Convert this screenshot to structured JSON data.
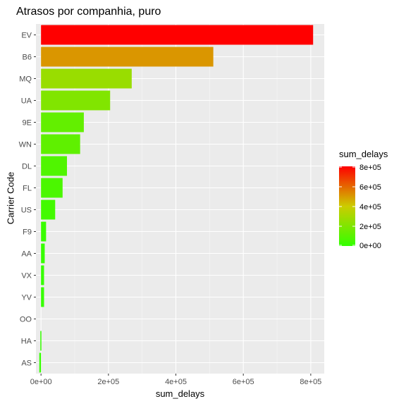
{
  "chart_data": {
    "type": "bar",
    "orientation": "horizontal",
    "title": "Atrasos por companhia, puro",
    "xlabel": "sum_delays",
    "ylabel": "Carrier Code",
    "categories": [
      "EV",
      "B6",
      "MQ",
      "UA",
      "9E",
      "WN",
      "DL",
      "FL",
      "US",
      "F9",
      "AA",
      "VX",
      "YV",
      "OO",
      "HA",
      "AS"
    ],
    "values": [
      807000,
      511000,
      269000,
      205000,
      127000,
      116000,
      77000,
      64000,
      42000,
      15000,
      11000,
      9000,
      9000,
      0,
      -2000,
      -5000
    ],
    "xlim": [
      -15000,
      840000
    ],
    "xticks": [
      0,
      200000,
      400000,
      600000,
      800000
    ],
    "xtick_labels": [
      "0e+00",
      "2e+05",
      "4e+05",
      "6e+05",
      "8e+05"
    ],
    "grid": true,
    "background": "#ebebeb",
    "color_scale": {
      "low": "#33ff00",
      "mid": "#cccc00",
      "high": "#ff0000"
    },
    "legend": {
      "title": "sum_delays",
      "position": "right",
      "ticks": [
        0,
        200000,
        400000,
        600000,
        800000
      ],
      "tick_labels": [
        "0e+00",
        "2e+05",
        "4e+05",
        "6e+05",
        "8e+05"
      ]
    }
  }
}
